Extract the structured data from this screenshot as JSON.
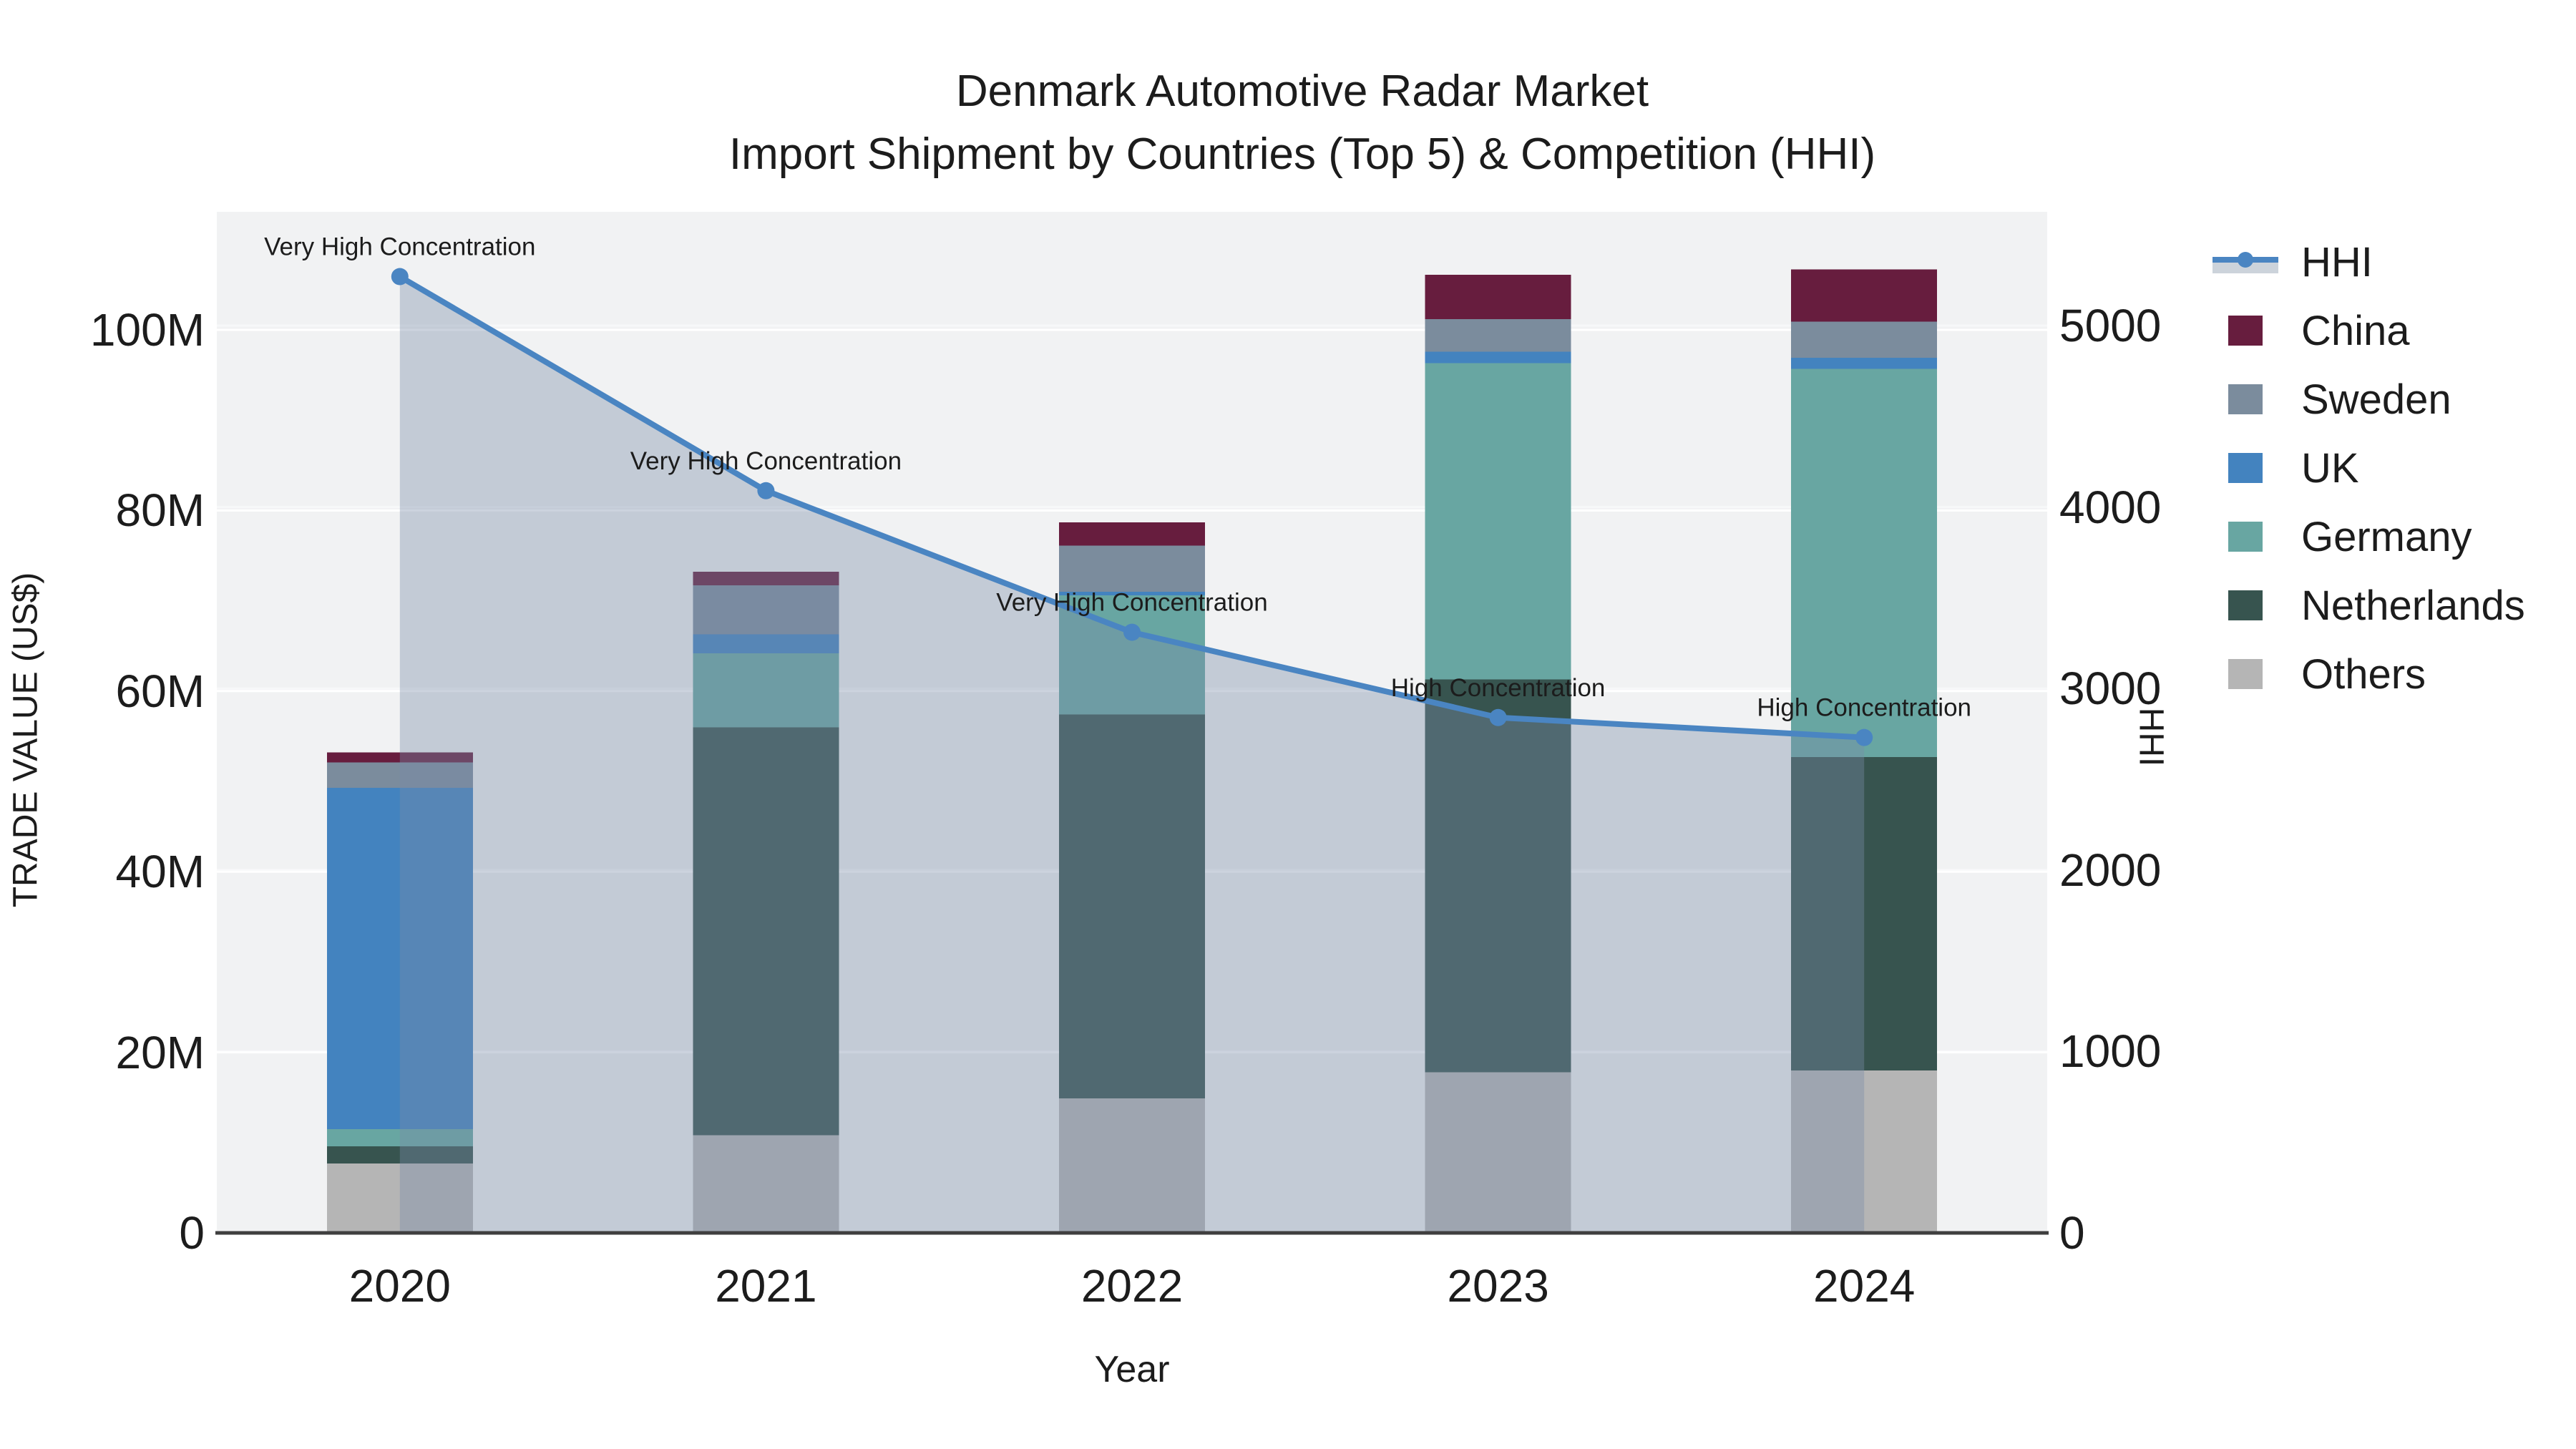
{
  "title": {
    "line1": "Denmark Automotive Radar Market",
    "line2": "Import Shipment by Countries (Top 5) & Competition (HHI)"
  },
  "chart_data": {
    "type": "bar",
    "subtype": "stacked-bar-with-line",
    "categories": [
      "2020",
      "2021",
      "2022",
      "2023",
      "2024"
    ],
    "xlabel": "Year",
    "y_left": {
      "label": "TRADE VALUE (US$)",
      "ticks": [
        "0",
        "20M",
        "40M",
        "60M",
        "80M",
        "100M"
      ],
      "tick_values_millions": [
        0,
        20,
        40,
        60,
        80,
        100
      ],
      "max_millions": 100
    },
    "y_right": {
      "label": "HHI",
      "ticks": [
        "0",
        "1000",
        "2000",
        "3000",
        "4000",
        "5000"
      ],
      "tick_values": [
        0,
        1000,
        2000,
        3000,
        4000,
        5000
      ],
      "max": 5000
    },
    "series": [
      {
        "name": "Others",
        "color": "#b5b5b5",
        "values_millions": [
          7.7,
          10.8,
          14.9,
          17.8,
          18.0
        ]
      },
      {
        "name": "Netherlands",
        "color": "#37544f",
        "values_millions": [
          1.9,
          45.2,
          42.5,
          43.5,
          34.7
        ]
      },
      {
        "name": "Germany",
        "color": "#68a6a2",
        "values_millions": [
          1.9,
          8.2,
          13.2,
          35.0,
          43.0
        ]
      },
      {
        "name": "UK",
        "color": "#4383bf",
        "values_millions": [
          37.8,
          2.1,
          0.4,
          1.3,
          1.2
        ]
      },
      {
        "name": "Sweden",
        "color": "#7b8c9d",
        "values_millions": [
          2.8,
          5.4,
          5.1,
          3.6,
          4.0
        ]
      },
      {
        "name": "China",
        "color": "#671d3e",
        "values_millions": [
          1.1,
          1.5,
          2.6,
          4.9,
          5.8
        ]
      }
    ],
    "stack_order_note": "bottom-to-top: Others, Netherlands, Germany, UK, Sweden, China",
    "hhi": {
      "name": "HHI",
      "color": "#4a85c2",
      "fill": "rgba(122,140,168,0.38)",
      "values": [
        5270,
        4090,
        3310,
        2840,
        2730
      ],
      "annotations": [
        "Very High Concentration",
        "Very High Concentration",
        "Very High Concentration",
        "High Concentration",
        "High Concentration"
      ]
    },
    "colors": {
      "plot_bg": "#f1f2f3",
      "grid_left": "#ffffff",
      "grid_right": "#f7f8f9",
      "axis_line": "#3f3f3f",
      "text": "#1c1c1c",
      "legend_band": "#ccd3db"
    },
    "legend_position": "right",
    "grid": "on"
  },
  "legend": {
    "items": [
      {
        "label": "HHI",
        "type": "line",
        "color": "#4a85c2"
      },
      {
        "label": "China",
        "type": "square",
        "color": "#671d3e"
      },
      {
        "label": "Sweden",
        "type": "square",
        "color": "#7b8c9d"
      },
      {
        "label": "UK",
        "type": "square",
        "color": "#4383bf"
      },
      {
        "label": "Germany",
        "type": "square",
        "color": "#68a6a2"
      },
      {
        "label": "Netherlands",
        "type": "square",
        "color": "#37544f"
      },
      {
        "label": "Others",
        "type": "square",
        "color": "#b5b5b5"
      }
    ]
  }
}
